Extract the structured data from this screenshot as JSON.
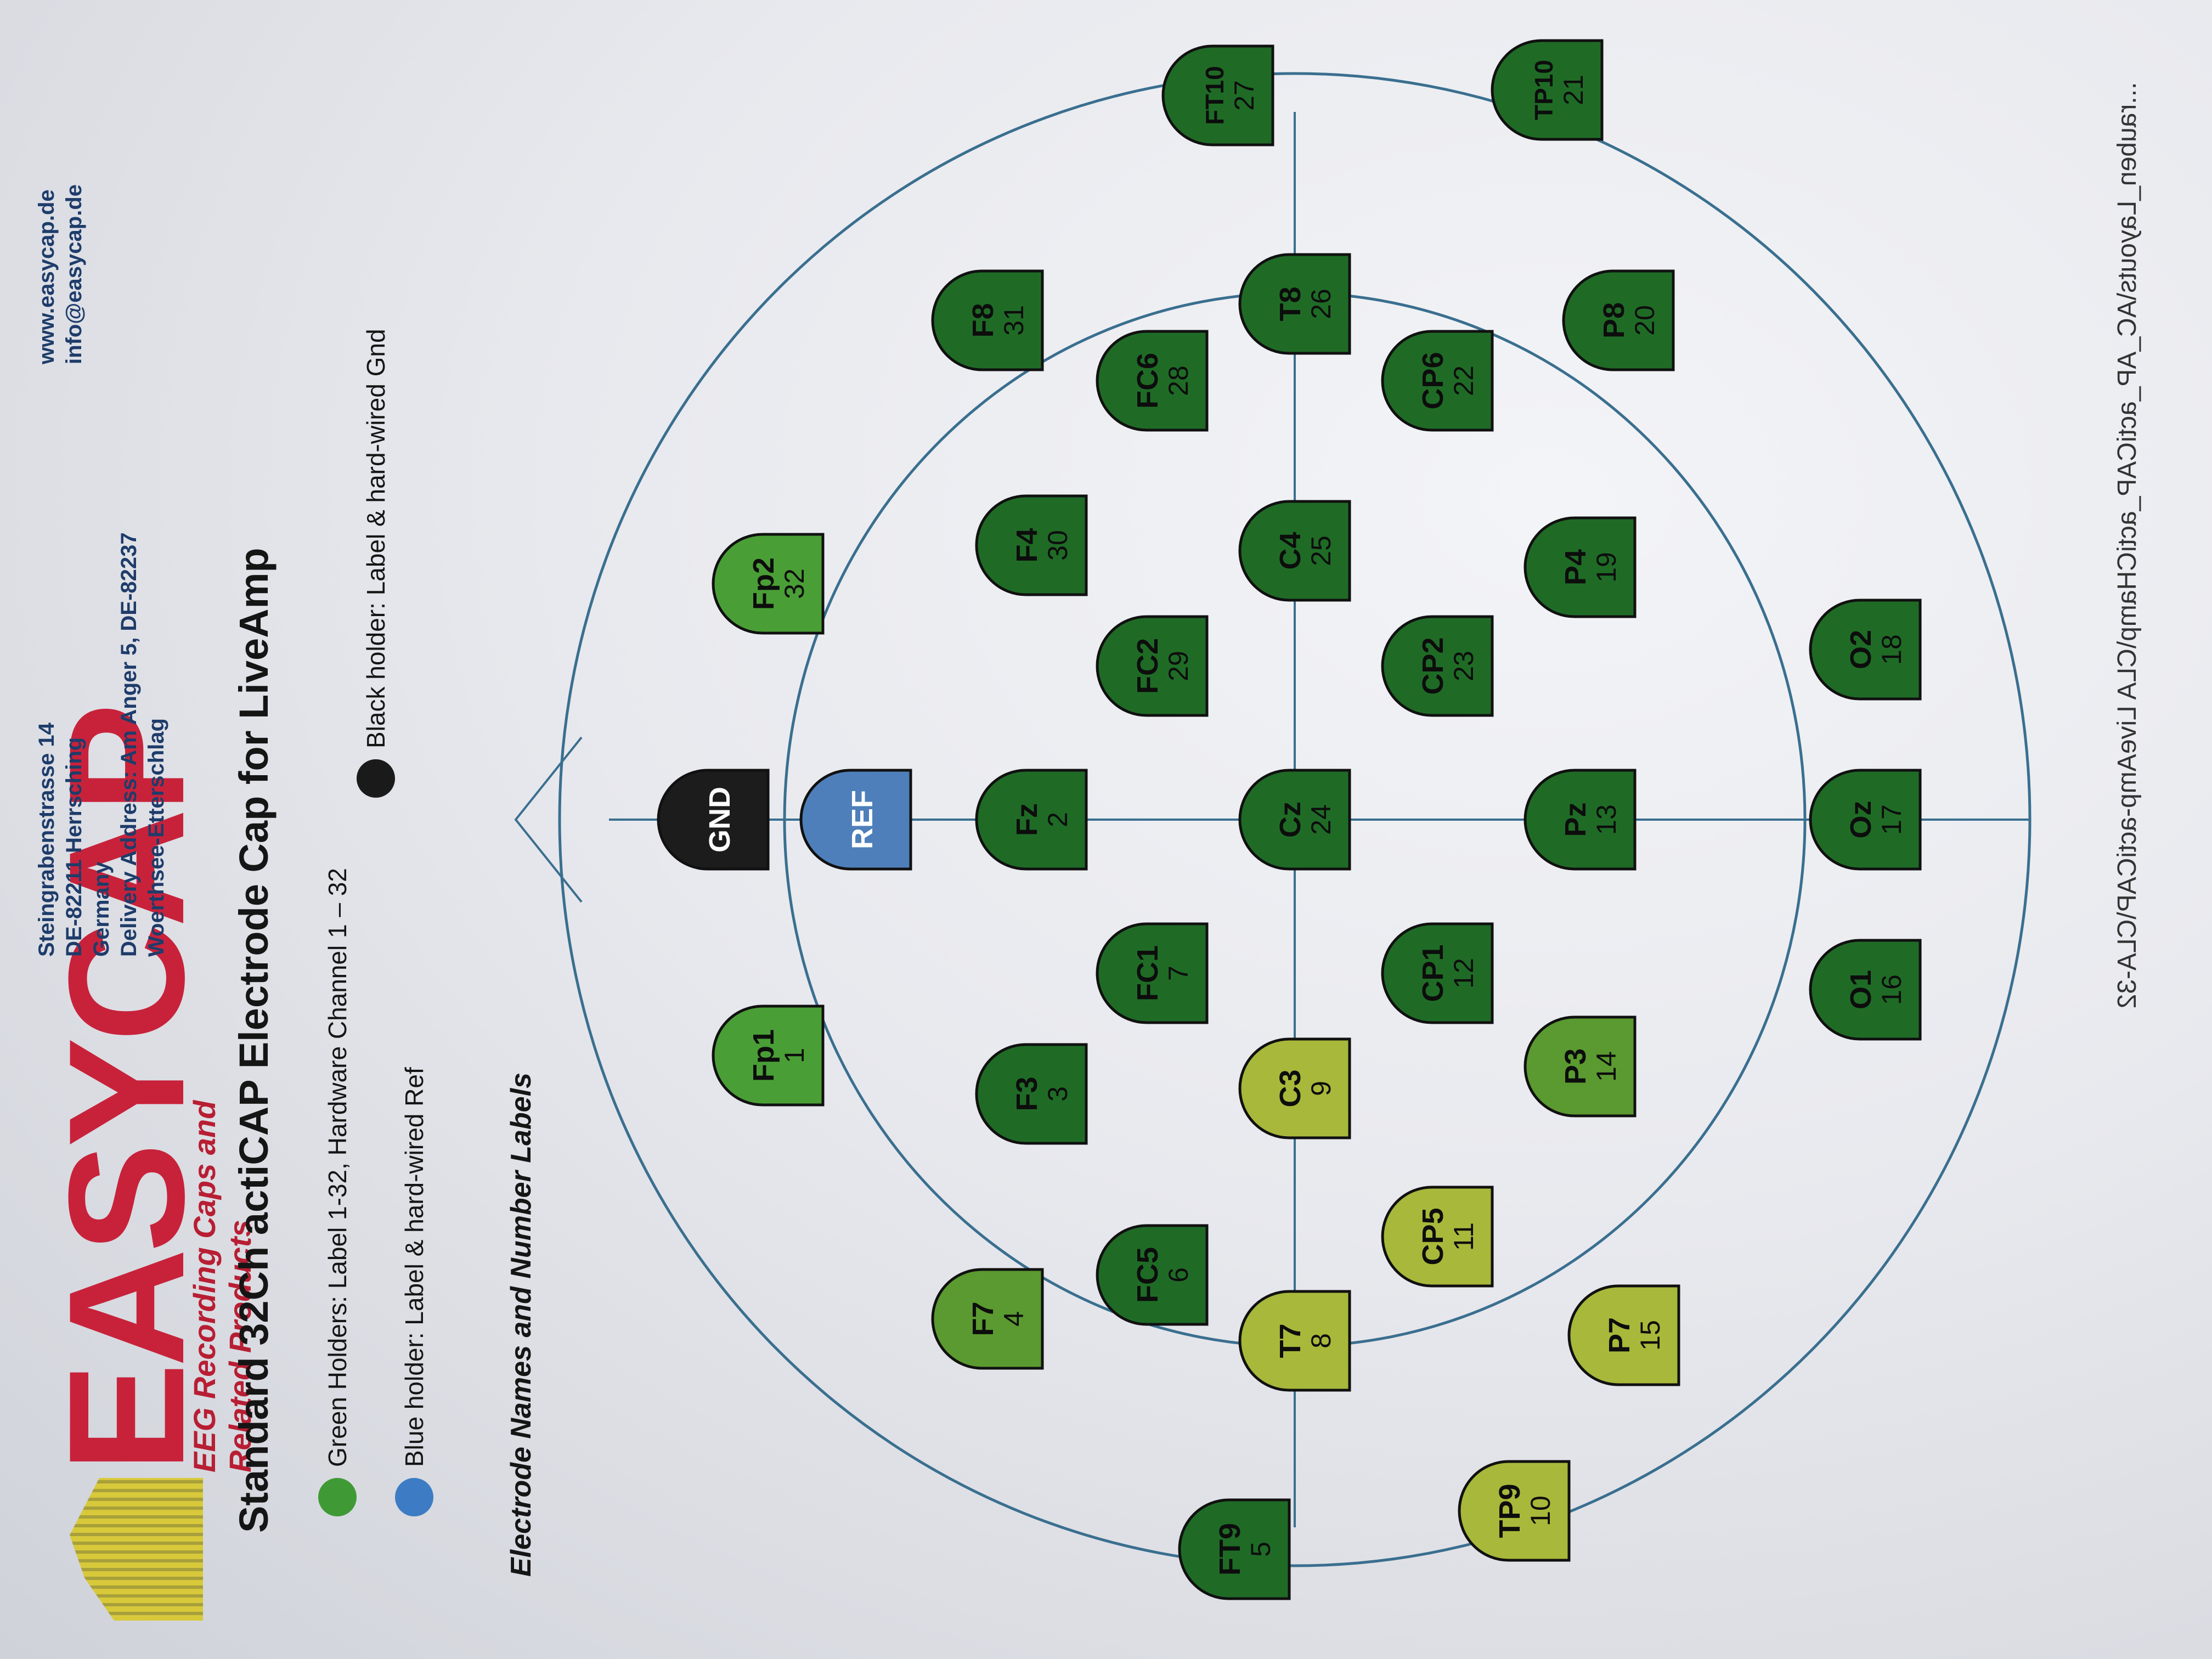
{
  "brand": {
    "name": "EASYCAP",
    "tagline": "EEG Recording Caps and Related Products",
    "color": "#c8223b"
  },
  "address": {
    "lines": [
      "Steingrabenstrasse 14",
      "DE-82211 Herrsching",
      "Germany"
    ],
    "delivery_label": "Delivery Address:",
    "delivery_value": "Am Anger 5, DE-82237 Woerthsee-Etterschlag",
    "web": "www.easycap.de",
    "email": "info@easycap.de"
  },
  "title": "Standard 32Ch actiCAP Electrode Cap for LiveAmp",
  "legend": [
    {
      "color": "#3f9a36",
      "text": "Green Holders: Label 1-32, Hardware Channel 1 – 32"
    },
    {
      "color": "#3d7cc4",
      "text": "Blue holder: Label & hard-wired Ref"
    },
    {
      "color": "#1a1a1a",
      "text": "Black holder: Label & hard-wired Gnd"
    }
  ],
  "section_title": "Electrode Names and Number Labels",
  "footer": "...rauben_Layouts\\AC_AP_actiCAP_actiCHamp\\CLA LiveAmp-actiCAP\\CLA-32",
  "colors": {
    "green_dark": "#1f6b26",
    "green_light": "#4a9e36",
    "blue": "#4e7fba",
    "black": "#1c1c1c",
    "line": "#3a6f8f"
  },
  "electrodes": [
    {
      "name": "GND",
      "num": ""
    },
    {
      "name": "REF",
      "num": ""
    },
    {
      "name": "Fp1",
      "num": "1"
    },
    {
      "name": "Fp2",
      "num": "32"
    },
    {
      "name": "F7",
      "num": "4"
    },
    {
      "name": "F3",
      "num": "3"
    },
    {
      "name": "Fz",
      "num": "2"
    },
    {
      "name": "F4",
      "num": "30"
    },
    {
      "name": "F8",
      "num": "31"
    },
    {
      "name": "FT9",
      "num": "5"
    },
    {
      "name": "FC5",
      "num": "6"
    },
    {
      "name": "FC1",
      "num": "7"
    },
    {
      "name": "FC2",
      "num": "29"
    },
    {
      "name": "FC6",
      "num": "28"
    },
    {
      "name": "FT10",
      "num": "27"
    },
    {
      "name": "T7",
      "num": "8"
    },
    {
      "name": "C3",
      "num": "9"
    },
    {
      "name": "Cz",
      "num": "24"
    },
    {
      "name": "C4",
      "num": "25"
    },
    {
      "name": "T8",
      "num": "26"
    },
    {
      "name": "TP9",
      "num": "10"
    },
    {
      "name": "CP5",
      "num": "11"
    },
    {
      "name": "CP1",
      "num": "12"
    },
    {
      "name": "CP2",
      "num": "23"
    },
    {
      "name": "CP6",
      "num": "22"
    },
    {
      "name": "TP10",
      "num": "21"
    },
    {
      "name": "P7",
      "num": "15"
    },
    {
      "name": "P3",
      "num": "14"
    },
    {
      "name": "Pz",
      "num": "13"
    },
    {
      "name": "P4",
      "num": "19"
    },
    {
      "name": "P8",
      "num": "20"
    },
    {
      "name": "O1",
      "num": "16"
    },
    {
      "name": "Oz",
      "num": "17"
    },
    {
      "name": "O2",
      "num": "18"
    }
  ]
}
